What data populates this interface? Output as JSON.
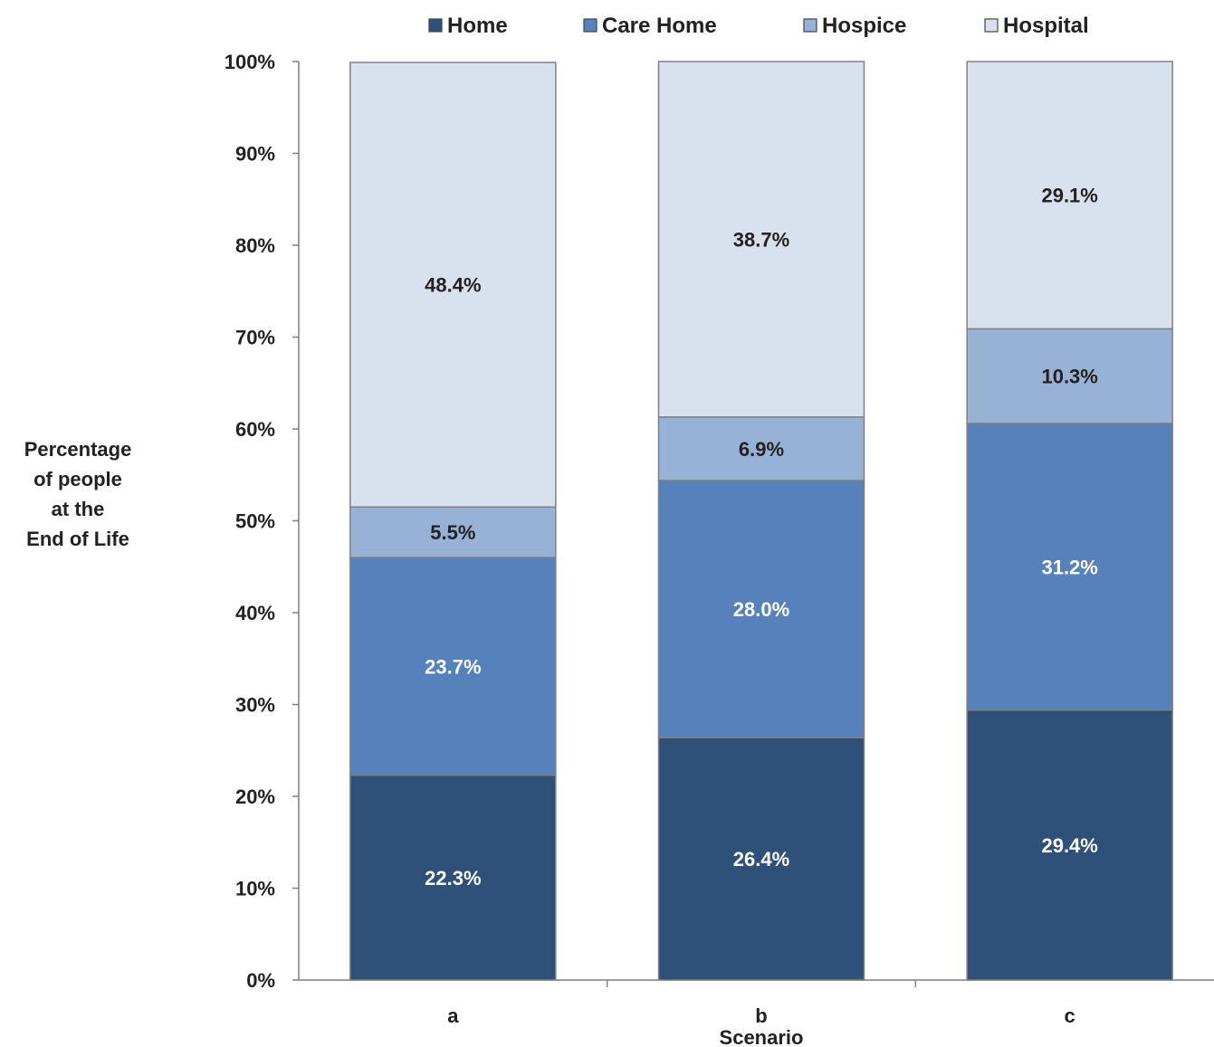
{
  "chart_data": {
    "type": "bar",
    "stacked": true,
    "title": "",
    "xlabel": "Scenario",
    "ylabel_lines": [
      "Percentage",
      "of people",
      "at the",
      "End of Life"
    ],
    "categories": [
      "a",
      "b",
      "c"
    ],
    "ylim": [
      0,
      100
    ],
    "yticks": [
      "0%",
      "10%",
      "20%",
      "30%",
      "40%",
      "50%",
      "60%",
      "70%",
      "80%",
      "90%",
      "100%"
    ],
    "legend_position": "top",
    "series": [
      {
        "name": "Home",
        "color": "#2f5079",
        "label_color": "#ffffff",
        "values": [
          22.3,
          26.4,
          29.4
        ],
        "labels": [
          "22.3%",
          "26.4%",
          "29.4%"
        ]
      },
      {
        "name": "Care Home",
        "color": "#5781bb",
        "label_color": "#ffffff",
        "values": [
          23.7,
          28.0,
          31.2
        ],
        "labels": [
          "23.7%",
          "28.0%",
          "31.2%"
        ]
      },
      {
        "name": "Hospice",
        "color": "#98b2d6",
        "label_color": "#222222",
        "values": [
          5.5,
          6.9,
          10.3
        ],
        "labels": [
          "5.5%",
          "6.9%",
          "10.3%"
        ]
      },
      {
        "name": "Hospital",
        "color": "#d8e1ee",
        "label_color": "#222222",
        "values": [
          48.4,
          38.7,
          29.1
        ],
        "labels": [
          "48.4%",
          "38.7%",
          "29.1%"
        ]
      }
    ]
  }
}
